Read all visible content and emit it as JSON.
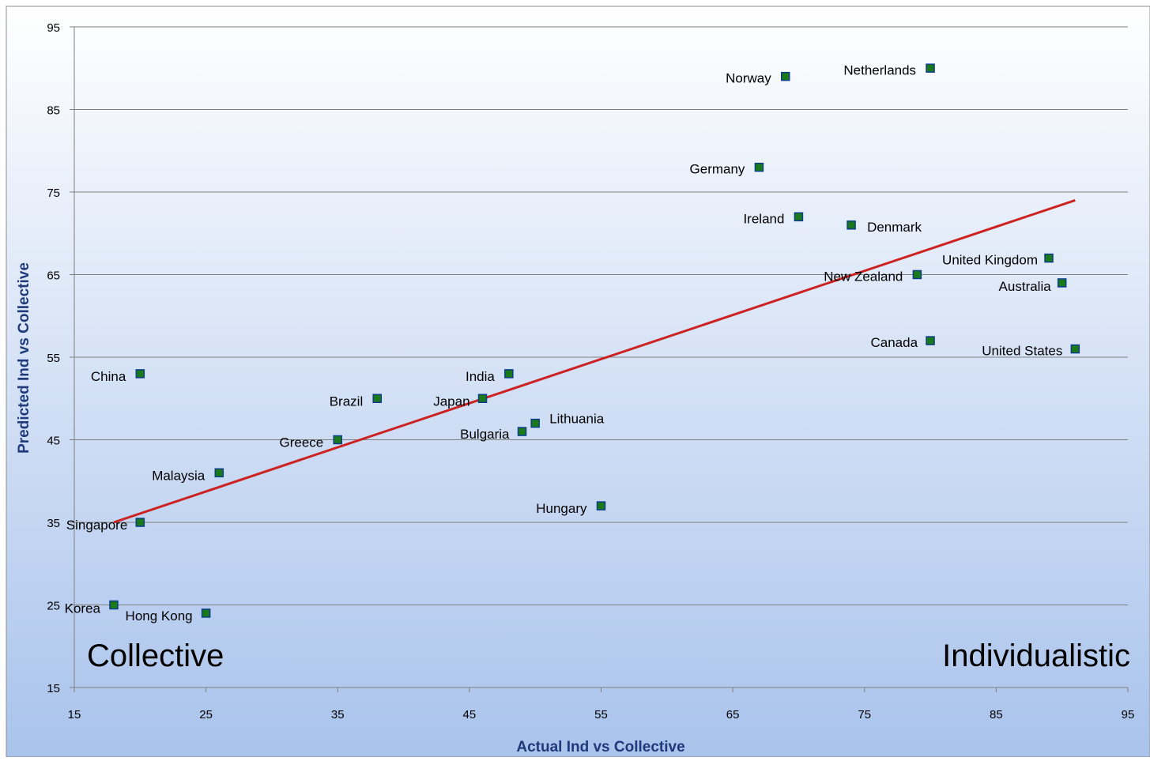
{
  "chart_data": {
    "type": "scatter",
    "title": "",
    "xlabel": "Actual Ind vs Collective",
    "ylabel": "Predicted Ind vs Collective",
    "xlim": [
      15,
      95
    ],
    "ylim": [
      15,
      95
    ],
    "x_ticks": [
      15,
      25,
      35,
      45,
      55,
      65,
      75,
      85,
      95
    ],
    "y_ticks": [
      15,
      25,
      35,
      45,
      55,
      65,
      75,
      85,
      95
    ],
    "grid": "horizontal",
    "legend": "none",
    "annotations": {
      "left": "Collective",
      "right": "Individualistic"
    },
    "points": [
      {
        "label": "Netherlands",
        "x": 80,
        "y": 90
      },
      {
        "label": "Norway",
        "x": 69,
        "y": 89
      },
      {
        "label": "Germany",
        "x": 67,
        "y": 78
      },
      {
        "label": "Ireland",
        "x": 70,
        "y": 72
      },
      {
        "label": "Denmark",
        "x": 74,
        "y": 71
      },
      {
        "label": "United Kingdom",
        "x": 89,
        "y": 67
      },
      {
        "label": "New Zealand",
        "x": 79,
        "y": 65
      },
      {
        "label": "Australia",
        "x": 90,
        "y": 64
      },
      {
        "label": "Canada",
        "x": 80,
        "y": 57
      },
      {
        "label": "United States",
        "x": 91,
        "y": 56
      },
      {
        "label": "China",
        "x": 20,
        "y": 53
      },
      {
        "label": "India",
        "x": 48,
        "y": 53
      },
      {
        "label": "Brazil",
        "x": 38,
        "y": 50
      },
      {
        "label": "Japan",
        "x": 46,
        "y": 50
      },
      {
        "label": "Lithuania",
        "x": 50,
        "y": 47
      },
      {
        "label": "Bulgaria",
        "x": 49,
        "y": 46
      },
      {
        "label": "Greece",
        "x": 35,
        "y": 45
      },
      {
        "label": "Malaysia",
        "x": 26,
        "y": 41
      },
      {
        "label": "Hungary",
        "x": 55,
        "y": 37
      },
      {
        "label": "Singapore",
        "x": 20,
        "y": 35
      },
      {
        "label": "Korea",
        "x": 18,
        "y": 25
      },
      {
        "label": "Hong Kong",
        "x": 25,
        "y": 24
      }
    ],
    "trendline": {
      "x": [
        18,
        91
      ],
      "y": [
        35,
        74
      ]
    },
    "colors": {
      "marker_fill": "#1a7a1a",
      "marker_stroke": "#0a3d8a",
      "trendline": "#cc2222",
      "axis_title": "#1f3a7a",
      "gridline": "#7f7f7f",
      "background_top": "#ffffff",
      "background_bottom": "#a9c3ec"
    }
  }
}
